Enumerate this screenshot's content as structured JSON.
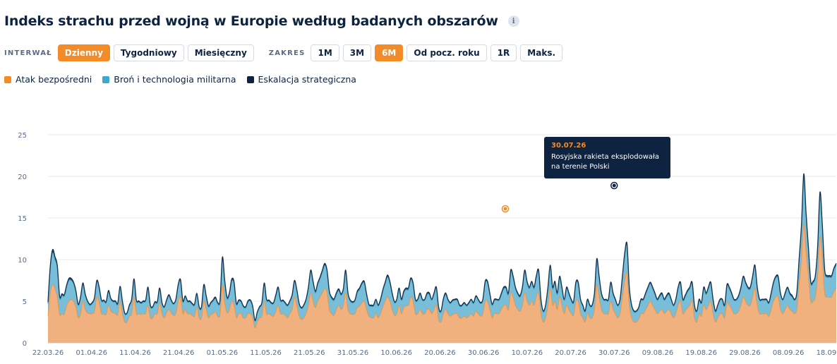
{
  "title": "Indeks strachu przed wojną w Europie według badanych obszarów",
  "info_icon_glyph": "i",
  "interval": {
    "label": "INTERWAŁ",
    "options": [
      "Dzienny",
      "Tygodniowy",
      "Miesięczny"
    ],
    "selected": "Dzienny"
  },
  "range": {
    "label": "ZAKRES",
    "options": [
      "1M",
      "3M",
      "6M",
      "Od pocz. roku",
      "1R",
      "Maks."
    ],
    "selected": "6M"
  },
  "colors": {
    "accent": "#f28c28",
    "orange": "#f7b07a",
    "blue": "#7cc5de",
    "navy": "#0d2340"
  },
  "tooltip": {
    "date": "30.07.26",
    "text_line1": "Rosyjska rakieta eksplodowała",
    "text_line2": "na terenie Polski"
  },
  "chart_data": {
    "type": "area",
    "stacked": true,
    "ylim": [
      0,
      25
    ],
    "yticks": [
      0,
      5,
      10,
      15,
      20,
      25
    ],
    "xticks": [
      "22.03.26",
      "01.04.26",
      "11.04.26",
      "21.04.26",
      "01.05.26",
      "11.05.26",
      "21.05.26",
      "31.05.26",
      "10.06.26",
      "20.06.26",
      "30.06.26",
      "10.07.26",
      "20.07.26",
      "30.07.26",
      "09.08.26",
      "19.08.26",
      "29.08.26",
      "08.09.26",
      "18.09.26"
    ],
    "grid": true,
    "legend_position": "top-left",
    "x_start": "22.03.26",
    "x_end": "19.09.26",
    "series": [
      {
        "name": "Atak bezpośredni",
        "color": "#f7b07a",
        "line_color": "#f28c28",
        "values": [
          3.2,
          6,
          7,
          6.5,
          5.5,
          3.4,
          3.5,
          3.4,
          4.5,
          5,
          5.2,
          5,
          4.3,
          3,
          3.5,
          5,
          4,
          3.6,
          3.5,
          3.5,
          3.8,
          5.5,
          4.8,
          3.5,
          3.5,
          3.4,
          4.5,
          3.8,
          3.6,
          3.5,
          3.4,
          5,
          3.5,
          2.5,
          2.5,
          3.2,
          3.5,
          5.5,
          3.5,
          3.5,
          3.4,
          3.5,
          3.5,
          4.5,
          3,
          3,
          3.5,
          3.5,
          4.8,
          3.5,
          3,
          3.6,
          4,
          3.6,
          3.3,
          3.5,
          5,
          5.5,
          3.5,
          4,
          3.5,
          3.5,
          3.3,
          3.2,
          4.3,
          3,
          3,
          5,
          4,
          3,
          3.4,
          3.5,
          3.7,
          3.2,
          3.4,
          7,
          4.8,
          3.6,
          4,
          5,
          4.5,
          3,
          3.5,
          3.5,
          3,
          3,
          3.5,
          3.5,
          3,
          1.8,
          2.5,
          3,
          3.2,
          5,
          3.5,
          3.5,
          3.3,
          3.2,
          3.8,
          4.5,
          3.5,
          3.5,
          3.3,
          3,
          3.5,
          4,
          5.5,
          4.5,
          3.2,
          2.8,
          3,
          3.5,
          4.5,
          6,
          5,
          4.2,
          5,
          5.5,
          6,
          6.5,
          6,
          4,
          3.5,
          3.3,
          4,
          4.5,
          4,
          4.5,
          6,
          4,
          3.5,
          3.4,
          3.5,
          4.2,
          4.4,
          4.8,
          5,
          4,
          3.2,
          3,
          3,
          3.5,
          3,
          3.5,
          4.3,
          5,
          5.5,
          5,
          4,
          3.3,
          3.5,
          4.5,
          3.5,
          4.2,
          4.5,
          4.5,
          5.5,
          5,
          3.5,
          3.5,
          4,
          3.5,
          3.5,
          4,
          4,
          3.5,
          4,
          4.5,
          2.8,
          2.5,
          3.5,
          4,
          3.5,
          3.2,
          3.4,
          3.5,
          3.5,
          3,
          3,
          3.2,
          3,
          3.2,
          3.5,
          3.2,
          3.8,
          3.5,
          3.2,
          3.5,
          5,
          5,
          4,
          3,
          3.5,
          3.5,
          3.5,
          4,
          4.5,
          4.5,
          4,
          6,
          5.5,
          4.5,
          4,
          3.8,
          4.5,
          6,
          5,
          4.5,
          5,
          4.5,
          5.5,
          6,
          3.5,
          2.5,
          3,
          4.5,
          6.5,
          4.5,
          5,
          4,
          5.5,
          4.5,
          3.5,
          4.5,
          4,
          3.5,
          3.3,
          5,
          5,
          3.5,
          3,
          2.5,
          3.5,
          3,
          3,
          4,
          7,
          5.5,
          4,
          3.5,
          3.5,
          3.5,
          5,
          4,
          3.5,
          3,
          3.5,
          5.5,
          7.5,
          8.3,
          4.5,
          3,
          2.5,
          2.5,
          2.8,
          3.5,
          3.5,
          4,
          4.5,
          5,
          4.5,
          4,
          3.5,
          3.8,
          4,
          3.5,
          3.8,
          4,
          3.5,
          3,
          3.5,
          4.5,
          5,
          3.5,
          3.8,
          4.2,
          4.5,
          5,
          3,
          2.5,
          3.5,
          3.2,
          4.5,
          4,
          4.5,
          5,
          3.5,
          2.5,
          3,
          3.5,
          3.5,
          3,
          4.8,
          4.5,
          4,
          3.5,
          3.5,
          3.8,
          4.5,
          5.5,
          5,
          4.5,
          4.5,
          5.5,
          6.5,
          4.5,
          3.5,
          3.5,
          3.5,
          3.5,
          3.2,
          4,
          5,
          5.5,
          5.5,
          4,
          3.5,
          4,
          4.5,
          4,
          3.8,
          3.5,
          4,
          7,
          10,
          14.3,
          11,
          8,
          5,
          5,
          5.5,
          8,
          12.7,
          10,
          6,
          5.5,
          5.5,
          5.5,
          6.2,
          6.5
        ]
      },
      {
        "name": "Broń i technologia militarna",
        "color": "#7cc5de",
        "line_color": "#2f9fc4",
        "values": [
          1.5,
          3,
          3.8,
          3.5,
          3.5,
          2,
          2.2,
          2.2,
          2.2,
          2.5,
          2.3,
          2.1,
          1.8,
          1.5,
          1.8,
          2,
          1.7,
          1.3,
          1,
          1.2,
          1.5,
          1.8,
          1.7,
          1.5,
          1.5,
          1.4,
          1.6,
          1.4,
          1.3,
          1.4,
          1.2,
          1.6,
          1.4,
          1,
          1,
          1.2,
          1.6,
          2,
          1.5,
          1.4,
          1.3,
          1.4,
          1.5,
          2,
          1.4,
          1.2,
          1.3,
          1.3,
          1.6,
          1.2,
          1.2,
          1.4,
          1.6,
          1.4,
          1.3,
          1.6,
          1.8,
          1.9,
          1.4,
          1.5,
          1.4,
          1.4,
          1.3,
          1.3,
          1.5,
          1.2,
          1.2,
          1.8,
          1.5,
          1.3,
          1.3,
          1.5,
          1.6,
          1.5,
          1.6,
          3,
          2.5,
          1.7,
          1.8,
          2.4,
          2.6,
          1.6,
          1.5,
          1.4,
          1.3,
          1.2,
          1.4,
          1.5,
          1.3,
          0.8,
          1.1,
          1.2,
          1.5,
          2,
          1.6,
          1.5,
          1.4,
          1.5,
          1.8,
          2,
          1.5,
          1.5,
          1.4,
          1.4,
          1.4,
          1.6,
          1.8,
          1.7,
          1.4,
          1.3,
          1.4,
          1.6,
          2,
          2.5,
          2.2,
          1.8,
          2,
          2.2,
          2.5,
          2.8,
          2.5,
          2,
          1.8,
          1.8,
          1.8,
          1.8,
          1.7,
          1.8,
          2.5,
          1.8,
          1.5,
          1.4,
          1.5,
          1.8,
          2,
          2.2,
          2.2,
          1.7,
          1.3,
          1.4,
          1.4,
          1.6,
          1.4,
          1.6,
          1.9,
          2.1,
          2.4,
          2.2,
          1.8,
          1.5,
          1.6,
          1.9,
          1.6,
          1.8,
          1.9,
          1.9,
          2.1,
          2,
          1.6,
          1.6,
          1.8,
          1.6,
          1.6,
          1.8,
          1.8,
          1.6,
          1.8,
          2,
          1.3,
          1.2,
          1.6,
          1.8,
          1.6,
          1.5,
          1.6,
          1.6,
          1.6,
          1.4,
          1.4,
          1.5,
          1.4,
          1.5,
          1.6,
          1.5,
          1.7,
          1.6,
          1.5,
          1.6,
          2.2,
          2.2,
          1.8,
          1.5,
          1.6,
          1.6,
          1.6,
          1.8,
          2,
          2,
          1.8,
          2.5,
          2.3,
          2,
          1.8,
          1.7,
          2,
          2.5,
          2.2,
          2,
          2.2,
          2,
          2.3,
          2.5,
          1.6,
          1.2,
          1.4,
          2,
          2.6,
          2,
          2.2,
          1.8,
          2.3,
          2,
          1.6,
          2,
          1.8,
          1.6,
          1.5,
          2.1,
          2.1,
          1.6,
          1.4,
          1.2,
          1.6,
          1.4,
          1.4,
          1.8,
          2.8,
          2.3,
          1.8,
          1.6,
          1.6,
          1.6,
          2.1,
          1.8,
          1.6,
          1.4,
          1.6,
          2.3,
          3,
          3.3,
          2,
          1.4,
          1.2,
          1.2,
          1.3,
          1.6,
          1.6,
          1.8,
          2,
          2.1,
          2,
          1.8,
          1.6,
          1.7,
          1.8,
          1.6,
          1.7,
          1.8,
          1.6,
          1.4,
          1.6,
          2,
          2.1,
          1.6,
          1.7,
          1.9,
          2,
          2.1,
          1.4,
          1.2,
          1.6,
          1.5,
          2,
          1.8,
          2,
          2.1,
          1.6,
          1.2,
          1.4,
          1.6,
          1.6,
          1.4,
          2,
          2,
          1.8,
          1.6,
          1.6,
          1.7,
          2,
          2.3,
          2.1,
          2,
          2,
          2.3,
          2.6,
          2,
          1.6,
          1.6,
          1.6,
          1.6,
          1.5,
          1.8,
          2.1,
          2.3,
          2.3,
          1.8,
          1.6,
          1.8,
          2,
          1.8,
          1.7,
          1.6,
          1.8,
          2.8,
          3.8,
          5.5,
          4.2,
          3.2,
          2.2,
          2.2,
          2.4,
          3.3,
          5,
          3.9,
          2.6,
          2.4,
          2.4,
          2.4,
          2.6,
          2.8
        ]
      },
      {
        "name": "Eskalacja strategiczna",
        "color": "#0d2340",
        "line_color": "#0d2340",
        "values": [
          0.2,
          0.3,
          0.4,
          0.35,
          0.3,
          0.2,
          0.2,
          0.2,
          0.25,
          0.25,
          0.25,
          0.2,
          0.2,
          0.15,
          0.2,
          0.2,
          0.2,
          0.15,
          0.15,
          0.15,
          0.15,
          0.2,
          0.2,
          0.15,
          0.15,
          0.15,
          0.2,
          0.15,
          0.15,
          0.15,
          0.15,
          0.2,
          0.15,
          0.1,
          0.1,
          0.15,
          0.15,
          0.2,
          0.15,
          0.15,
          0.15,
          0.15,
          0.15,
          0.2,
          0.15,
          0.15,
          0.15,
          0.15,
          0.2,
          0.15,
          0.15,
          0.15,
          0.2,
          0.15,
          0.15,
          0.15,
          0.2,
          0.2,
          0.15,
          0.15,
          0.15,
          0.15,
          0.15,
          0.15,
          0.15,
          0.15,
          0.15,
          0.2,
          0.2,
          0.15,
          0.15,
          0.15,
          0.2,
          0.15,
          0.15,
          0.3,
          0.25,
          0.2,
          0.2,
          0.25,
          0.25,
          0.15,
          0.15,
          0.15,
          0.15,
          0.15,
          0.15,
          0.15,
          0.15,
          0.1,
          0.1,
          0.15,
          0.15,
          0.2,
          0.15,
          0.15,
          0.15,
          0.15,
          0.2,
          0.2,
          0.15,
          0.15,
          0.15,
          0.15,
          0.15,
          0.2,
          0.2,
          0.2,
          0.15,
          0.15,
          0.15,
          0.15,
          0.2,
          0.25,
          0.2,
          0.2,
          0.2,
          0.2,
          0.25,
          0.25,
          0.25,
          0.2,
          0.2,
          0.2,
          0.2,
          0.2,
          0.2,
          0.2,
          0.25,
          0.2,
          0.15,
          0.15,
          0.15,
          0.2,
          0.2,
          0.2,
          0.2,
          0.2,
          0.15,
          0.15,
          0.15,
          0.15,
          0.15,
          0.15,
          0.2,
          0.2,
          0.25,
          0.2,
          0.2,
          0.15,
          0.15,
          0.2,
          0.15,
          0.2,
          0.2,
          0.2,
          0.2,
          0.2,
          0.15,
          0.15,
          0.2,
          0.15,
          0.15,
          0.2,
          0.2,
          0.15,
          0.2,
          0.2,
          0.15,
          0.15,
          0.15,
          0.2,
          0.15,
          0.15,
          0.15,
          0.15,
          0.15,
          0.15,
          0.15,
          0.15,
          0.15,
          0.15,
          0.15,
          0.15,
          0.15,
          0.15,
          0.15,
          0.15,
          0.2,
          0.2,
          0.2,
          0.15,
          0.15,
          0.15,
          0.15,
          0.2,
          0.2,
          0.2,
          0.2,
          0.25,
          0.25,
          0.2,
          0.2,
          0.2,
          0.2,
          0.25,
          0.2,
          0.2,
          0.2,
          0.2,
          0.25,
          0.25,
          0.15,
          0.15,
          0.15,
          0.2,
          0.25,
          0.2,
          0.2,
          0.2,
          0.2,
          0.2,
          0.15,
          0.2,
          0.2,
          0.15,
          0.15,
          0.2,
          0.2,
          0.15,
          0.15,
          0.15,
          0.15,
          0.15,
          0.15,
          0.2,
          0.3,
          0.25,
          0.2,
          0.15,
          0.15,
          0.15,
          0.2,
          0.2,
          0.15,
          0.15,
          0.15,
          0.2,
          0.3,
          0.3,
          0.2,
          0.15,
          0.15,
          0.15,
          0.15,
          0.15,
          0.15,
          0.2,
          0.2,
          0.2,
          0.2,
          0.2,
          0.15,
          0.2,
          0.2,
          0.15,
          0.2,
          0.2,
          0.15,
          0.15,
          0.15,
          0.2,
          0.2,
          0.15,
          0.2,
          0.2,
          0.2,
          0.2,
          0.15,
          0.15,
          0.15,
          0.15,
          0.2,
          0.2,
          0.2,
          0.2,
          0.15,
          0.15,
          0.15,
          0.15,
          0.15,
          0.15,
          0.2,
          0.2,
          0.2,
          0.15,
          0.15,
          0.2,
          0.2,
          0.2,
          0.2,
          0.2,
          0.2,
          0.2,
          0.25,
          0.2,
          0.15,
          0.15,
          0.15,
          0.15,
          0.15,
          0.2,
          0.2,
          0.2,
          0.2,
          0.2,
          0.15,
          0.2,
          0.2,
          0.2,
          0.2,
          0.15,
          0.2,
          0.25,
          0.3,
          0.5,
          0.4,
          0.3,
          0.2,
          0.2,
          0.2,
          0.3,
          0.4,
          0.3,
          0.25,
          0.2,
          0.2,
          0.2,
          0.2,
          0.25
        ]
      }
    ],
    "markers": [
      {
        "date": "05.07.26",
        "value": 16.1,
        "color": "#f28c28"
      },
      {
        "date": "30.07.26",
        "value": 18.9,
        "color": "#0d2340"
      }
    ]
  }
}
